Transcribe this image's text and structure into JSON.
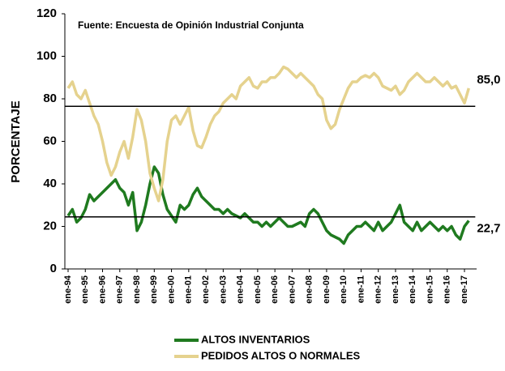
{
  "chart_data": {
    "type": "line",
    "annotation": "Fuente: Encuesta de Opinión Industrial Conjunta",
    "y_label": "PORCENTAJE",
    "categories": [
      "ene-94",
      null,
      null,
      null,
      "ene-95",
      null,
      null,
      null,
      "ene-96",
      null,
      null,
      null,
      "ene-97",
      null,
      null,
      null,
      "ene-98",
      null,
      null,
      null,
      "ene-99",
      null,
      null,
      null,
      "ene-00",
      null,
      null,
      null,
      "ene-01",
      null,
      null,
      null,
      "ene-02",
      null,
      null,
      null,
      "ene-03",
      null,
      null,
      null,
      "ene-04",
      null,
      null,
      null,
      "ene-05",
      null,
      null,
      null,
      "ene-06",
      null,
      null,
      null,
      "ene-07",
      null,
      null,
      null,
      "ene-08",
      null,
      null,
      null,
      "ene-09",
      null,
      null,
      null,
      "ene-10",
      null,
      null,
      null,
      "ene-11",
      null,
      null,
      null,
      "ene-12",
      null,
      null,
      null,
      "ene-13",
      null,
      null,
      null,
      "ene-14",
      null,
      null,
      null,
      "ene-15",
      null,
      null,
      null,
      "ene-16",
      null,
      null,
      null,
      "ene-17",
      null
    ],
    "series": [
      {
        "name": "ALTOS INVENTARIOS",
        "color": "#1f7a1f",
        "last_label": "22,7",
        "values": [
          25,
          28,
          22,
          24,
          28,
          35,
          32,
          34,
          36,
          38,
          40,
          42,
          38,
          36,
          30,
          36,
          18,
          22,
          30,
          40,
          48,
          45,
          35,
          28,
          25,
          22,
          30,
          28,
          30,
          35,
          38,
          34,
          32,
          30,
          28,
          28,
          26,
          28,
          26,
          25,
          24,
          26,
          24,
          22,
          22,
          20,
          22,
          20,
          22,
          24,
          22,
          20,
          20,
          21,
          22,
          20,
          26,
          28,
          26,
          22,
          18,
          16,
          15,
          14,
          12,
          16,
          18,
          20,
          20,
          22,
          20,
          18,
          22,
          18,
          20,
          22,
          26,
          30,
          22,
          20,
          18,
          22,
          18,
          20,
          22,
          20,
          18,
          20,
          18,
          20,
          16,
          14,
          20,
          22.7
        ],
        "reference": 24.5
      },
      {
        "name": "PEDIDOS ALTOS O NORMALES",
        "color": "#e5d28e",
        "last_label": "85,0",
        "values": [
          85,
          88,
          82,
          80,
          84,
          78,
          72,
          68,
          60,
          50,
          44,
          48,
          55,
          60,
          52,
          62,
          75,
          70,
          60,
          45,
          38,
          32,
          42,
          60,
          70,
          72,
          68,
          72,
          76,
          65,
          58,
          57,
          62,
          68,
          72,
          74,
          78,
          80,
          82,
          80,
          86,
          88,
          90,
          86,
          85,
          88,
          88,
          90,
          90,
          92,
          95,
          94,
          92,
          90,
          92,
          90,
          88,
          86,
          82,
          80,
          70,
          66,
          68,
          75,
          80,
          85,
          88,
          88,
          90,
          91,
          90,
          92,
          90,
          86,
          85,
          84,
          86,
          82,
          84,
          88,
          90,
          92,
          90,
          88,
          88,
          90,
          88,
          86,
          88,
          85,
          86,
          82,
          78,
          85.0
        ],
        "reference": 76.5
      }
    ],
    "ylim": [
      0,
      120
    ],
    "yticks": [
      0,
      20,
      40,
      60,
      80,
      100,
      120
    ],
    "legend": "bottom"
  }
}
